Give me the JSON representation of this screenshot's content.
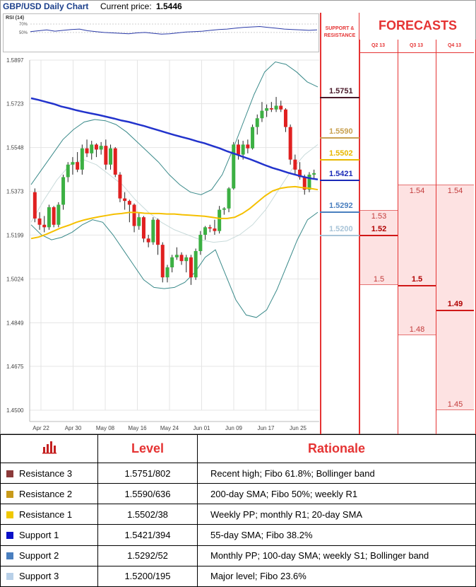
{
  "header": {
    "title": "GBP/USD Daily Chart",
    "price_label": "Current price:",
    "price_value": "1.5446"
  },
  "rsi": {
    "label": "RSI (14)",
    "levels": [
      "70%",
      "50%"
    ]
  },
  "chart_data": {
    "type": "candlestick",
    "title": "GBP/USD Daily Chart",
    "ylim": [
      1.45,
      1.5897
    ],
    "y_ticks": [
      "1.5897",
      "1.5723",
      "1.5548",
      "1.5373",
      "1.5199",
      "1.5024",
      "1.4849",
      "1.4675",
      "1.4500"
    ],
    "x_ticks": [
      "Apr 22",
      "Apr 30",
      "May 08",
      "May 16",
      "May 24",
      "Jun 01",
      "Jun 09",
      "Jun 17",
      "Jun 25"
    ],
    "candles": [
      {
        "o": 1.537,
        "h": 1.5385,
        "l": 1.525,
        "c": 1.5265
      },
      {
        "o": 1.5265,
        "h": 1.529,
        "l": 1.522,
        "c": 1.524
      },
      {
        "o": 1.524,
        "h": 1.5275,
        "l": 1.521,
        "c": 1.523
      },
      {
        "o": 1.523,
        "h": 1.532,
        "l": 1.522,
        "c": 1.531
      },
      {
        "o": 1.531,
        "h": 1.5315,
        "l": 1.523,
        "c": 1.524
      },
      {
        "o": 1.524,
        "h": 1.533,
        "l": 1.523,
        "c": 1.532
      },
      {
        "o": 1.532,
        "h": 1.544,
        "l": 1.53,
        "c": 1.543
      },
      {
        "o": 1.543,
        "h": 1.549,
        "l": 1.541,
        "c": 1.548
      },
      {
        "o": 1.548,
        "h": 1.551,
        "l": 1.544,
        "c": 1.549
      },
      {
        "o": 1.549,
        "h": 1.553,
        "l": 1.545,
        "c": 1.546
      },
      {
        "o": 1.546,
        "h": 1.556,
        "l": 1.544,
        "c": 1.5545
      },
      {
        "o": 1.5545,
        "h": 1.558,
        "l": 1.551,
        "c": 1.5525
      },
      {
        "o": 1.5525,
        "h": 1.5575,
        "l": 1.55,
        "c": 1.556
      },
      {
        "o": 1.556,
        "h": 1.5565,
        "l": 1.551,
        "c": 1.554
      },
      {
        "o": 1.554,
        "h": 1.557,
        "l": 1.552,
        "c": 1.5555
      },
      {
        "o": 1.5555,
        "h": 1.558,
        "l": 1.546,
        "c": 1.548
      },
      {
        "o": 1.548,
        "h": 1.556,
        "l": 1.546,
        "c": 1.5545
      },
      {
        "o": 1.5545,
        "h": 1.555,
        "l": 1.543,
        "c": 1.544
      },
      {
        "o": 1.544,
        "h": 1.545,
        "l": 1.533,
        "c": 1.5345
      },
      {
        "o": 1.5345,
        "h": 1.537,
        "l": 1.53,
        "c": 1.5335
      },
      {
        "o": 1.5335,
        "h": 1.534,
        "l": 1.525,
        "c": 1.532
      },
      {
        "o": 1.532,
        "h": 1.5325,
        "l": 1.521,
        "c": 1.5235
      },
      {
        "o": 1.5235,
        "h": 1.529,
        "l": 1.522,
        "c": 1.527
      },
      {
        "o": 1.527,
        "h": 1.5275,
        "l": 1.517,
        "c": 1.5185
      },
      {
        "o": 1.5185,
        "h": 1.52,
        "l": 1.515,
        "c": 1.517
      },
      {
        "o": 1.517,
        "h": 1.527,
        "l": 1.516,
        "c": 1.526
      },
      {
        "o": 1.526,
        "h": 1.5265,
        "l": 1.512,
        "c": 1.516
      },
      {
        "o": 1.516,
        "h": 1.517,
        "l": 1.501,
        "c": 1.503
      },
      {
        "o": 1.503,
        "h": 1.508,
        "l": 1.501,
        "c": 1.507
      },
      {
        "o": 1.507,
        "h": 1.512,
        "l": 1.505,
        "c": 1.511
      },
      {
        "o": 1.511,
        "h": 1.515,
        "l": 1.51,
        "c": 1.512
      },
      {
        "o": 1.512,
        "h": 1.513,
        "l": 1.508,
        "c": 1.5095
      },
      {
        "o": 1.5095,
        "h": 1.512,
        "l": 1.505,
        "c": 1.511
      },
      {
        "o": 1.511,
        "h": 1.512,
        "l": 1.5,
        "c": 1.503
      },
      {
        "o": 1.503,
        "h": 1.5145,
        "l": 1.502,
        "c": 1.5135
      },
      {
        "o": 1.5135,
        "h": 1.5215,
        "l": 1.512,
        "c": 1.52
      },
      {
        "o": 1.52,
        "h": 1.5235,
        "l": 1.518,
        "c": 1.523
      },
      {
        "o": 1.523,
        "h": 1.524,
        "l": 1.521,
        "c": 1.5225
      },
      {
        "o": 1.5225,
        "h": 1.526,
        "l": 1.52,
        "c": 1.5215
      },
      {
        "o": 1.5215,
        "h": 1.5315,
        "l": 1.5205,
        "c": 1.53
      },
      {
        "o": 1.53,
        "h": 1.531,
        "l": 1.528,
        "c": 1.5305
      },
      {
        "o": 1.5305,
        "h": 1.539,
        "l": 1.529,
        "c": 1.5385
      },
      {
        "o": 1.5385,
        "h": 1.557,
        "l": 1.538,
        "c": 1.556
      },
      {
        "o": 1.556,
        "h": 1.558,
        "l": 1.55,
        "c": 1.552
      },
      {
        "o": 1.552,
        "h": 1.5575,
        "l": 1.55,
        "c": 1.556
      },
      {
        "o": 1.556,
        "h": 1.558,
        "l": 1.5525,
        "c": 1.5545
      },
      {
        "o": 1.5545,
        "h": 1.564,
        "l": 1.554,
        "c": 1.563
      },
      {
        "o": 1.563,
        "h": 1.568,
        "l": 1.56,
        "c": 1.5665
      },
      {
        "o": 1.5665,
        "h": 1.573,
        "l": 1.565,
        "c": 1.5695
      },
      {
        "o": 1.5695,
        "h": 1.572,
        "l": 1.567,
        "c": 1.5705
      },
      {
        "o": 1.5705,
        "h": 1.573,
        "l": 1.569,
        "c": 1.57
      },
      {
        "o": 1.57,
        "h": 1.575,
        "l": 1.569,
        "c": 1.5715
      },
      {
        "o": 1.5715,
        "h": 1.5735,
        "l": 1.569,
        "c": 1.57
      },
      {
        "o": 1.57,
        "h": 1.5705,
        "l": 1.561,
        "c": 1.563
      },
      {
        "o": 1.563,
        "h": 1.564,
        "l": 1.548,
        "c": 1.55
      },
      {
        "o": 1.55,
        "h": 1.552,
        "l": 1.544,
        "c": 1.546
      },
      {
        "o": 1.546,
        "h": 1.549,
        "l": 1.542,
        "c": 1.543
      },
      {
        "o": 1.543,
        "h": 1.544,
        "l": 1.536,
        "c": 1.538
      },
      {
        "o": 1.538,
        "h": 1.545,
        "l": 1.537,
        "c": 1.544
      },
      {
        "o": 1.544,
        "h": 1.546,
        "l": 1.542,
        "c": 1.5446
      }
    ],
    "sma_blue": [
      1.5745,
      1.5738,
      1.573,
      1.5722,
      1.5712,
      1.5705,
      1.5697,
      1.569,
      1.5684,
      1.5678,
      1.5671,
      1.5664,
      1.5656,
      1.565,
      1.5642,
      1.5634,
      1.5625,
      1.5616,
      1.5607,
      1.5598,
      1.559,
      1.5582,
      1.5573,
      1.5565,
      1.5555,
      1.5545,
      1.5533,
      1.5523,
      1.5512,
      1.5502,
      1.549,
      1.5478,
      1.5467,
      1.5458,
      1.5448,
      1.544,
      1.5432,
      1.5425,
      1.5421
    ],
    "sma_yellow": [
      1.5185,
      1.5191,
      1.5202,
      1.5215,
      1.5228,
      1.5238,
      1.525,
      1.5259,
      1.5266,
      1.5272,
      1.5277,
      1.5282,
      1.5285,
      1.5289,
      1.5289,
      1.5286,
      1.5285,
      1.5285,
      1.5283,
      1.5283,
      1.528,
      1.5278,
      1.5276,
      1.5274,
      1.527,
      1.5265,
      1.5265,
      1.527,
      1.5285,
      1.5305,
      1.533,
      1.5355,
      1.5375,
      1.5385,
      1.539,
      1.5392,
      1.5388,
      1.5385,
      1.538
    ],
    "bb_upper": [
      1.54,
      1.546,
      1.552,
      1.558,
      1.562,
      1.565,
      1.566,
      1.5655,
      1.564,
      1.561,
      1.557,
      1.553,
      1.549,
      1.544,
      1.54,
      1.537,
      1.536,
      1.538,
      1.544,
      1.554,
      1.565,
      1.576,
      1.585,
      1.589,
      1.588,
      1.585,
      1.581,
      1.579
    ],
    "bb_lower": [
      1.524,
      1.52,
      1.518,
      1.519,
      1.521,
      1.524,
      1.526,
      1.525,
      1.52,
      1.514,
      1.508,
      1.502,
      1.499,
      1.4985,
      1.499,
      1.501,
      1.505,
      1.511,
      1.514,
      1.504,
      1.494,
      1.488,
      1.487,
      1.49,
      1.498,
      1.508,
      1.518,
      1.526,
      1.529
    ],
    "bb_mid": [
      1.525,
      1.534,
      1.542,
      1.548,
      1.55,
      1.548,
      1.544,
      1.54,
      1.534,
      1.529,
      1.525,
      1.522,
      1.52,
      1.518,
      1.517,
      1.5175,
      1.52,
      1.524,
      1.53,
      1.538,
      1.546,
      1.552,
      1.556
    ],
    "rsi_values": [
      52,
      54,
      56,
      53,
      55,
      57,
      58,
      54,
      52,
      50,
      49,
      48,
      47,
      49,
      50,
      48,
      46,
      47,
      49,
      51,
      52,
      53,
      55,
      57,
      58,
      60,
      62,
      63,
      64,
      62,
      60,
      58,
      57,
      56,
      55,
      56
    ]
  },
  "sr_panel": {
    "header_line1": "SUPPORT &",
    "header_line2": "RESISTANCE",
    "levels": [
      {
        "value": 1.5751,
        "label": "1.5751",
        "color": "#4a1a2a"
      },
      {
        "value": 1.559,
        "label": "1.5590",
        "color": "#c8a050"
      },
      {
        "value": 1.5502,
        "label": "1.5502",
        "color": "#e8b800"
      },
      {
        "value": 1.5421,
        "label": "1.5421",
        "color": "#1a2ab8"
      },
      {
        "value": 1.5292,
        "label": "1.5292",
        "color": "#4a7fbf"
      },
      {
        "value": 1.52,
        "label": "1.5200",
        "color": "#a8c4d8"
      }
    ]
  },
  "forecasts": {
    "title": "FORECASTS",
    "quarters": [
      {
        "label": "Q2 13",
        "high": 1.53,
        "mid": 1.52,
        "low": 1.5,
        "high_label": "1.53",
        "mid_label": "1.52",
        "low_label": "1.5",
        "bold": "mid"
      },
      {
        "label": "Q3 13",
        "high": 1.54,
        "mid": 1.5,
        "low": 1.48,
        "high_label": "1.54",
        "mid_label": "1.5",
        "low_label": "1.48",
        "bold": "mid"
      },
      {
        "label": "Q4 13",
        "high": 1.54,
        "mid": 1.49,
        "low": 1.45,
        "high_label": "1.54",
        "mid_label": "1.49",
        "low_label": "1.45",
        "bold": "mid"
      }
    ]
  },
  "table": {
    "header_level": "Level",
    "header_rationale": "Rationale",
    "rows": [
      {
        "name": "Resistance 3",
        "color": "#8b3a3a",
        "level": "1.5751/802",
        "rationale": "Recent high; Fibo 61.8%; Bollinger band"
      },
      {
        "name": "Resistance 2",
        "color": "#c89a1a",
        "level": "1.5590/636",
        "rationale": "200-day SMA; Fibo 50%; weekly R1"
      },
      {
        "name": "Resistance 1",
        "color": "#f0c800",
        "level": "1.5502/38",
        "rationale": "Weekly PP; monthly R1; 20-day SMA"
      },
      {
        "name": "Support 1",
        "color": "#0a10c8",
        "level": "1.5421/394",
        "rationale": "55-day SMA; Fibo 38.2%"
      },
      {
        "name": "Support 2",
        "color": "#4a7fbf",
        "level": "1.5292/52",
        "rationale": "Monthly PP; 100-day SMA; weekly S1; Bollinger band"
      },
      {
        "name": "Support 3",
        "color": "#b8d0e8",
        "level": "1.5200/195",
        "rationale": "Major level; Fibo 23.6%"
      }
    ]
  },
  "colors": {
    "accent": "#e53333",
    "up": "#3cb043",
    "down": "#e02020",
    "sma_blue": "#2233cc",
    "sma_yellow": "#f5c000",
    "bollinger": "#3a8a8a"
  }
}
